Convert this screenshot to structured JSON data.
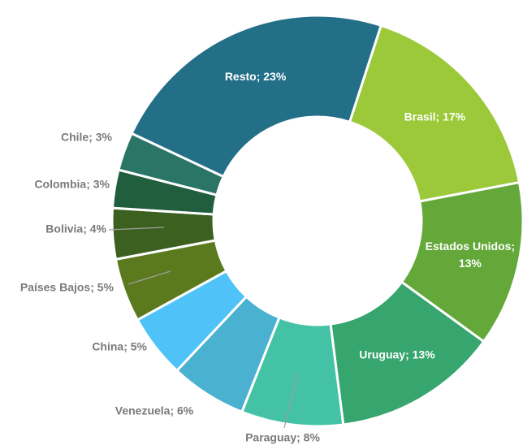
{
  "chart_data": {
    "type": "donut",
    "values": [
      17,
      13,
      13,
      8,
      6,
      5,
      5,
      4,
      3,
      3,
      23
    ],
    "value_labels": [
      "Brasil; 17%",
      "Estados Unidos; 13%",
      "Uruguay; 13%",
      "Paraguay; 8%",
      "Venezuela; 6%",
      "China; 5%",
      "Países Bajos; 5%",
      "Bolivia; 4%",
      "Colombia; 3%",
      "Chile; 3%",
      "Resto; 23%"
    ],
    "colors": [
      "#9bc93a",
      "#64a83a",
      "#36a56e",
      "#44c2a5",
      "#4ab1d0",
      "#4fc3f7",
      "#5b7a1e",
      "#3b6020",
      "#215e3e",
      "#2a7565",
      "#236f88"
    ]
  }
}
